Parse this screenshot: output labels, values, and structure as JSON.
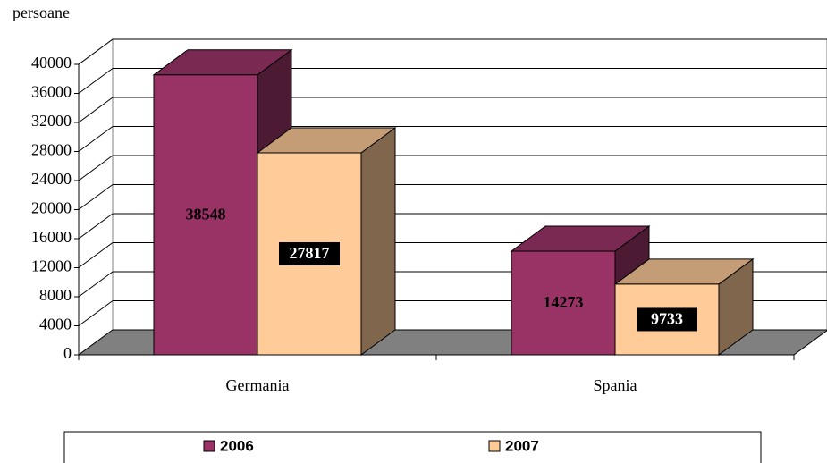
{
  "chart_data": {
    "type": "bar3d",
    "y_axis_label": "persoane",
    "categories": [
      "Germania",
      "Spania"
    ],
    "series": [
      {
        "name": "2006",
        "color": "#993366",
        "values": [
          38548,
          14273
        ]
      },
      {
        "name": "2007",
        "color": "#ffcc99",
        "values": [
          27817,
          9733
        ]
      }
    ],
    "ylim": [
      0,
      40000
    ],
    "yticks": [
      0,
      4000,
      8000,
      12000,
      16000,
      20000,
      24000,
      28000,
      32000,
      36000,
      40000
    ],
    "grid": true,
    "legend": "bottom"
  }
}
